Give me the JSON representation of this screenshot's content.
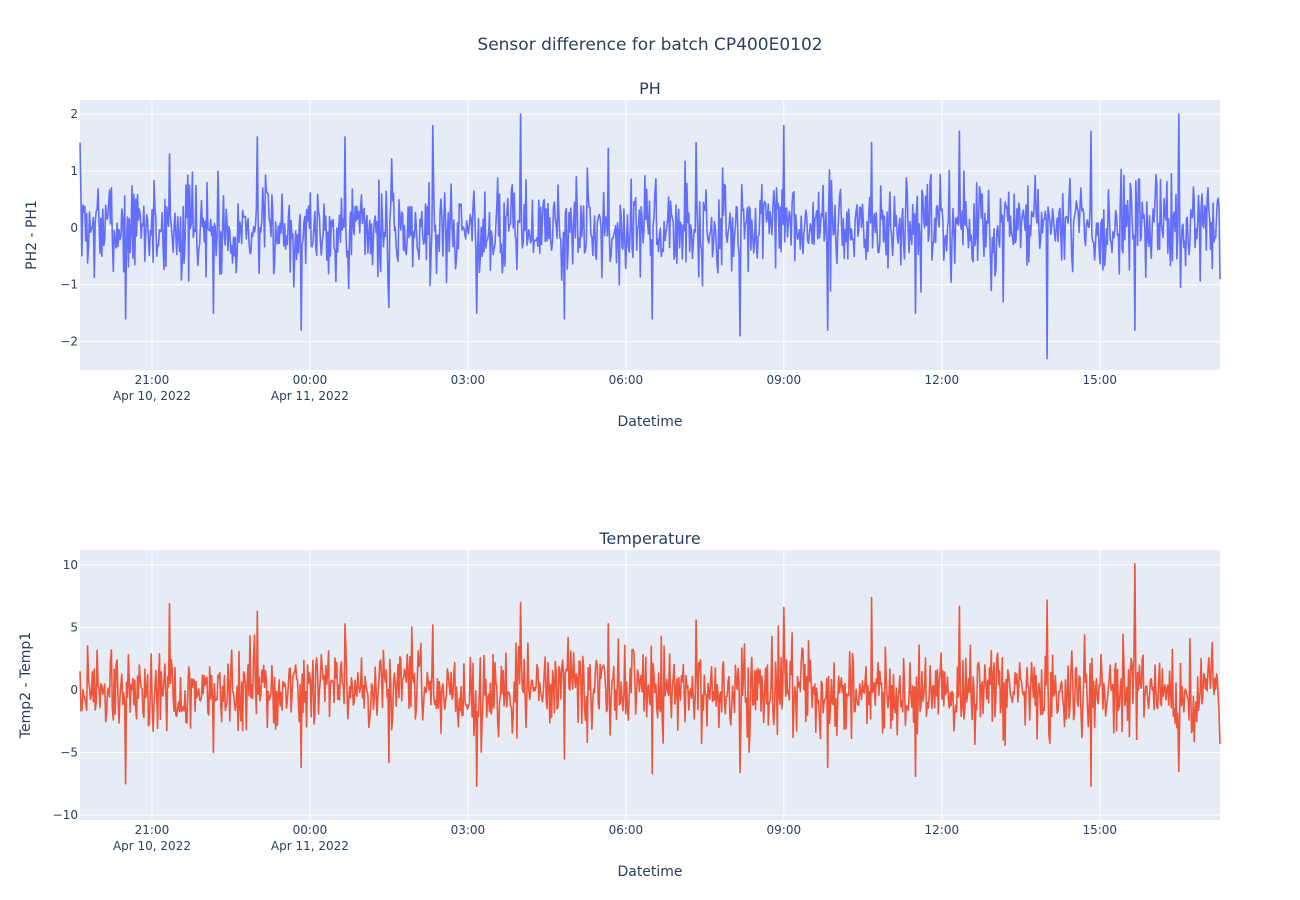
{
  "title": "Sensor difference for batch CP400E0102",
  "colors": {
    "ph": "#636efa",
    "temperature": "#ef553b",
    "plot_bg": "#e5ecf6",
    "grid": "#ffffff",
    "text": "#2a3f5f"
  },
  "chart_data": [
    {
      "type": "line",
      "title": "PH",
      "xlabel": "Datetime",
      "ylabel": "PH2 - PH1",
      "x_range": [
        "2022-04-10 19:38",
        "2022-04-11 17:17"
      ],
      "ylim": [
        -2.5,
        2.25
      ],
      "x_ticks": [
        {
          "value": "2022-04-10 21:00",
          "label": "21:00",
          "sublabel": "Apr 10, 2022"
        },
        {
          "value": "2022-04-11 00:00",
          "label": "00:00",
          "sublabel": "Apr 11, 2022"
        },
        {
          "value": "2022-04-11 03:00",
          "label": "03:00",
          "sublabel": ""
        },
        {
          "value": "2022-04-11 06:00",
          "label": "06:00",
          "sublabel": ""
        },
        {
          "value": "2022-04-11 09:00",
          "label": "09:00",
          "sublabel": ""
        },
        {
          "value": "2022-04-11 12:00",
          "label": "12:00",
          "sublabel": ""
        },
        {
          "value": "2022-04-11 15:00",
          "label": "15:00",
          "sublabel": ""
        }
      ],
      "y_ticks": [
        {
          "value": 2,
          "label": "2"
        },
        {
          "value": 1,
          "label": "1"
        },
        {
          "value": 0,
          "label": "0"
        },
        {
          "value": -1,
          "label": "−1"
        },
        {
          "value": -2,
          "label": "−2"
        }
      ],
      "grid": true,
      "series": [
        {
          "color": "#636efa",
          "x": [
            "2022-04-10 19:38",
            "2022-04-10 20:30",
            "2022-04-10 21:20",
            "2022-04-10 22:10",
            "2022-04-10 23:00",
            "2022-04-10 23:50",
            "2022-04-11 00:40",
            "2022-04-11 01:30",
            "2022-04-11 02:20",
            "2022-04-11 03:10",
            "2022-04-11 04:00",
            "2022-04-11 04:50",
            "2022-04-11 05:40",
            "2022-04-11 06:30",
            "2022-04-11 07:20",
            "2022-04-11 08:10",
            "2022-04-11 09:00",
            "2022-04-11 09:50",
            "2022-04-11 10:40",
            "2022-04-11 11:30",
            "2022-04-11 12:20",
            "2022-04-11 13:10",
            "2022-04-11 14:00",
            "2022-04-11 14:50",
            "2022-04-11 15:40",
            "2022-04-11 16:30",
            "2022-04-11 17:17"
          ],
          "y": [
            1.5,
            -1.6,
            1.3,
            -1.5,
            1.6,
            -1.8,
            1.6,
            -1.4,
            1.8,
            -1.5,
            2.0,
            -1.6,
            1.4,
            -1.6,
            1.5,
            -1.9,
            1.8,
            -1.8,
            1.5,
            -1.5,
            1.7,
            -1.3,
            -2.3,
            1.7,
            -1.8,
            2.0,
            -0.9
          ]
        }
      ]
    },
    {
      "type": "line",
      "title": "Temperature",
      "xlabel": "Datetime",
      "ylabel": "Temp2 - Temp1",
      "x_range": [
        "2022-04-10 19:38",
        "2022-04-11 17:17"
      ],
      "ylim": [
        -10.4,
        11.2
      ],
      "x_ticks": [
        {
          "value": "2022-04-10 21:00",
          "label": "21:00",
          "sublabel": "Apr 10, 2022"
        },
        {
          "value": "2022-04-11 00:00",
          "label": "00:00",
          "sublabel": "Apr 11, 2022"
        },
        {
          "value": "2022-04-11 03:00",
          "label": "03:00",
          "sublabel": ""
        },
        {
          "value": "2022-04-11 06:00",
          "label": "06:00",
          "sublabel": ""
        },
        {
          "value": "2022-04-11 09:00",
          "label": "09:00",
          "sublabel": ""
        },
        {
          "value": "2022-04-11 12:00",
          "label": "12:00",
          "sublabel": ""
        },
        {
          "value": "2022-04-11 15:00",
          "label": "15:00",
          "sublabel": ""
        }
      ],
      "y_ticks": [
        {
          "value": 10,
          "label": "10"
        },
        {
          "value": 5,
          "label": "5"
        },
        {
          "value": 0,
          "label": "0"
        },
        {
          "value": -5,
          "label": "−5"
        },
        {
          "value": -10,
          "label": "−10"
        }
      ],
      "grid": true,
      "series": [
        {
          "color": "#ef553b",
          "x": [
            "2022-04-10 19:38",
            "2022-04-10 20:30",
            "2022-04-10 21:20",
            "2022-04-10 22:10",
            "2022-04-10 23:00",
            "2022-04-10 23:50",
            "2022-04-11 00:40",
            "2022-04-11 01:30",
            "2022-04-11 02:20",
            "2022-04-11 03:10",
            "2022-04-11 04:00",
            "2022-04-11 04:50",
            "2022-04-11 05:40",
            "2022-04-11 06:30",
            "2022-04-11 07:20",
            "2022-04-11 08:10",
            "2022-04-11 09:00",
            "2022-04-11 09:50",
            "2022-04-11 10:40",
            "2022-04-11 11:30",
            "2022-04-11 12:20",
            "2022-04-11 13:10",
            "2022-04-11 14:00",
            "2022-04-11 14:50",
            "2022-04-11 15:40",
            "2022-04-11 16:30",
            "2022-04-11 17:17"
          ],
          "y": [
            1.5,
            -7.5,
            6.9,
            -5.0,
            6.3,
            -6.2,
            5.3,
            -5.8,
            5.2,
            -7.7,
            7.0,
            -5.5,
            5.3,
            -6.7,
            5.6,
            -6.6,
            6.6,
            -6.2,
            7.4,
            -6.9,
            6.7,
            -4.0,
            7.2,
            -7.7,
            10.1,
            -6.5,
            -4.3
          ]
        }
      ]
    }
  ]
}
